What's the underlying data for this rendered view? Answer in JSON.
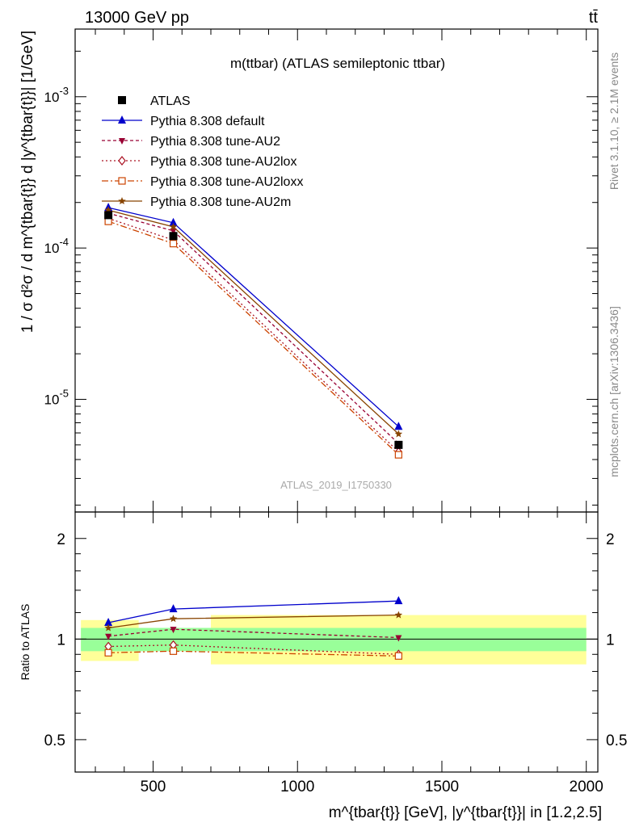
{
  "header": {
    "energy_label": "13000 GeV pp",
    "process_label": "tt̄"
  },
  "side_labels": {
    "rivet": "Rivet 3.1.10, ≥ 2.1M events",
    "mcplots": "mcplots.cern.ch [arXiv:1306.3436]"
  },
  "chart_data": [
    {
      "type": "line",
      "panel": "main",
      "title": "m(ttbar) (ATLAS semileptonic ttbar)",
      "ylabel": "1 / σ d²σ / d m^{tbar{t}} d |y^{tbar{t}}| [1/GeV]",
      "watermark": "ATLAS_2019_I1750330",
      "yscale": "log",
      "xlim": [
        230,
        2040
      ],
      "ylim": [
        1.8e-06,
        0.0028
      ],
      "y_ticks": [
        {
          "value": 0.001,
          "label": "10^-3"
        },
        {
          "value": 0.0001,
          "label": "10^-4"
        },
        {
          "value": 1e-05,
          "label": "10^-5"
        }
      ],
      "legend_position": "top-left",
      "x": [
        345,
        570,
        1350
      ],
      "data": {
        "name": "ATLAS",
        "values": [
          0.000165,
          0.00012,
          5e-06
        ]
      },
      "series": [
        {
          "name": "Pythia 8.308 default",
          "values": [
            0.000185,
            0.000147,
            6.6e-06
          ],
          "color": "#0000cc",
          "marker": "triangle-up",
          "dash": ""
        },
        {
          "name": "Pythia 8.308 tune-AU2",
          "values": [
            0.00017,
            0.00013,
            5.1e-06
          ],
          "color": "#990033",
          "marker": "triangle-down",
          "dash": "4,3"
        },
        {
          "name": "Pythia 8.308 tune-AU2lox",
          "values": [
            0.000157,
            0.000113,
            4.5e-06
          ],
          "color": "#aa1122",
          "marker": "diamond",
          "dash": "2,3"
        },
        {
          "name": "Pythia 8.308 tune-AU2loxx",
          "values": [
            0.00015,
            0.000107,
            4.3e-06
          ],
          "color": "#cc4400",
          "marker": "square-open",
          "dash": "8,3,2,3"
        },
        {
          "name": "Pythia 8.308 tune-AU2m",
          "values": [
            0.000178,
            0.000138,
            5.9e-06
          ],
          "color": "#884400",
          "marker": "star",
          "dash": ""
        }
      ]
    },
    {
      "type": "line",
      "panel": "ratio",
      "ylabel": "Ratio to ATLAS",
      "xlabel": "m^{tbar{t}} [GeV], |y^{tbar{t}}| in [1.2,2.5]",
      "yscale": "log",
      "xlim": [
        230,
        2040
      ],
      "ylim": [
        0.4,
        2.4
      ],
      "x_ticks": [
        500,
        1000,
        1500,
        2000
      ],
      "y_ticks": [
        {
          "value": 0.5,
          "label": "0.5"
        },
        {
          "value": 1,
          "label": "1"
        },
        {
          "value": 2,
          "label": "2"
        }
      ],
      "bands": [
        {
          "x": [
            250,
            450
          ],
          "inner": [
            0.92,
            1.08
          ],
          "outer": [
            0.86,
            1.14
          ]
        },
        {
          "x": [
            450,
            700
          ],
          "inner": [
            0.92,
            1.08
          ],
          "outer": [
            0.92,
            1.08
          ]
        },
        {
          "x": [
            700,
            2000
          ],
          "inner": [
            0.92,
            1.08
          ],
          "outer": [
            0.84,
            1.18
          ]
        }
      ],
      "x": [
        345,
        570,
        1350
      ],
      "series": [
        {
          "name": "Pythia 8.308 default",
          "values": [
            1.12,
            1.23,
            1.3
          ]
        },
        {
          "name": "Pythia 8.308 tune-AU2",
          "values": [
            1.02,
            1.07,
            1.01
          ]
        },
        {
          "name": "Pythia 8.308 tune-AU2lox",
          "values": [
            0.95,
            0.96,
            0.9
          ]
        },
        {
          "name": "Pythia 8.308 tune-AU2loxx",
          "values": [
            0.91,
            0.92,
            0.89
          ]
        },
        {
          "name": "Pythia 8.308 tune-AU2m",
          "values": [
            1.08,
            1.15,
            1.18
          ]
        }
      ]
    }
  ]
}
